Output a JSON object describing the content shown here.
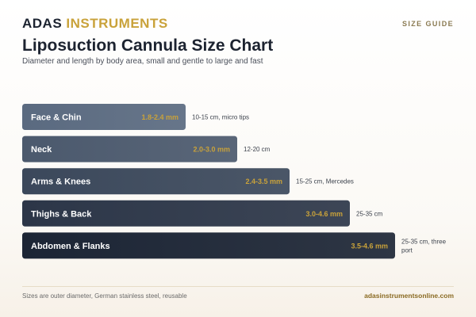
{
  "header": {
    "brand_part1": "ADAS",
    "brand_part2": "INSTRUMENTS",
    "tag": "SIZE GUIDE",
    "title": "Liposuction Cannula Size Chart",
    "subtitle": "Diameter and length by body area, small and gentle to large and fast"
  },
  "colors": {
    "accent": "#c9a23a",
    "bar_light": "#5a6a80",
    "bar_dark": "#1c2535"
  },
  "chart_data": {
    "type": "bar",
    "orientation": "horizontal",
    "categories": [
      "Face & Chin",
      "Neck",
      "Arms & Knees",
      "Thighs & Back",
      "Abdomen & Flanks"
    ],
    "values": [
      2.4,
      3.0,
      3.5,
      4.6,
      4.6
    ],
    "data_labels": [
      "1.8-2.4 mm",
      "2.0-3.0 mm",
      "2.4-3.5 mm",
      "3.0-4.6 mm",
      "3.5-4.6 mm"
    ],
    "lengths": [
      [
        "10-15 cm, micro tips"
      ],
      [
        "12-20 cm"
      ],
      [
        "15-25 cm, Mercedes"
      ],
      [
        "25-35 cm"
      ],
      [
        "25-35 cm, three",
        "port"
      ]
    ],
    "title": "Liposuction Cannula Size Chart",
    "xlabel": "",
    "ylabel": ""
  },
  "footer": {
    "note": "Sizes are outer diameter, German stainless steel, reusable",
    "site": "adasinstrumentsonline.com"
  }
}
